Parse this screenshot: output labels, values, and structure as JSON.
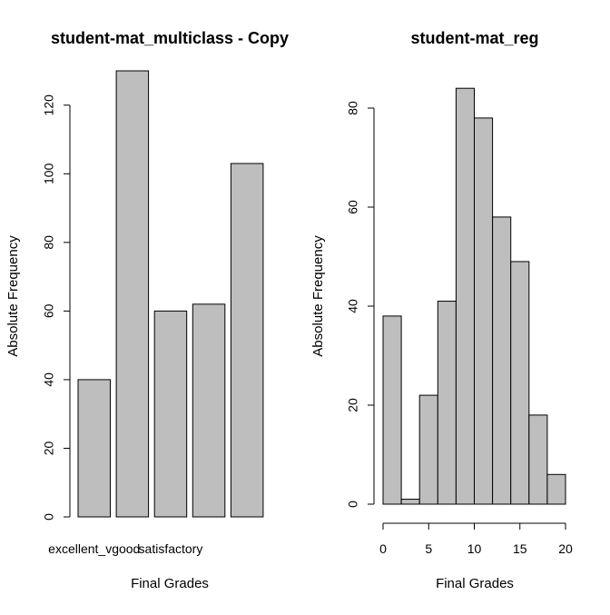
{
  "chart_data": [
    {
      "type": "bar",
      "title": "student-mat_multiclass - Copy",
      "xlabel": "Final Grades",
      "ylabel": "Absolute Frequency",
      "categories": [
        "excellent_vgood",
        "",
        "satisfactory",
        "",
        ""
      ],
      "values": [
        40,
        130,
        60,
        62,
        103
      ],
      "ylim": [
        0,
        130
      ],
      "yticks": [
        "0",
        "20",
        "40",
        "60",
        "80",
        "100",
        "120"
      ],
      "bar_color": "#bebebe",
      "grid": false
    },
    {
      "type": "bar",
      "subtype": "histogram",
      "title": "student-mat_reg",
      "xlabel": "Final Grades",
      "ylabel": "Absolute Frequency",
      "bins": [
        [
          0,
          2
        ],
        [
          2,
          4
        ],
        [
          4,
          6
        ],
        [
          6,
          8
        ],
        [
          8,
          10
        ],
        [
          10,
          12
        ],
        [
          12,
          14
        ],
        [
          14,
          16
        ],
        [
          16,
          18
        ],
        [
          18,
          20
        ]
      ],
      "values": [
        38,
        1,
        22,
        41,
        84,
        78,
        58,
        49,
        18,
        6
      ],
      "xlim": [
        0,
        20
      ],
      "ylim": [
        0,
        84
      ],
      "xticks": [
        "0",
        "5",
        "10",
        "15",
        "20"
      ],
      "yticks": [
        "0",
        "20",
        "40",
        "60",
        "80"
      ],
      "bar_color": "#bebebe",
      "grid": false
    }
  ]
}
